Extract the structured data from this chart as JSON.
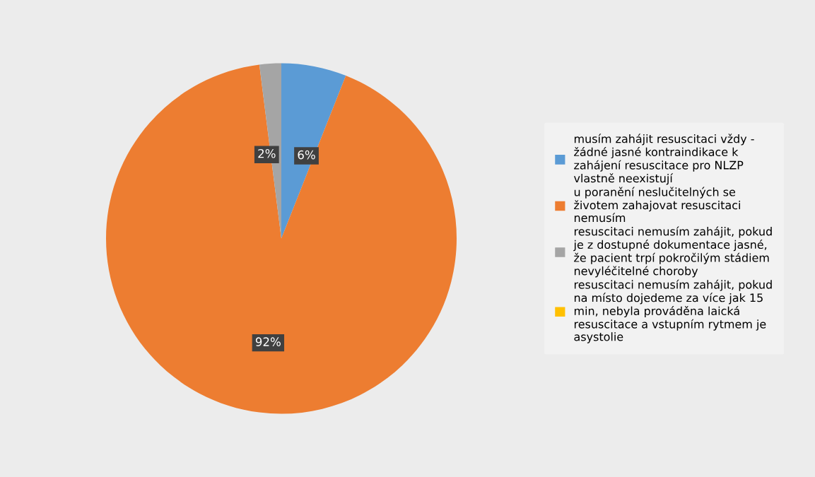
{
  "chart_data": {
    "type": "pie",
    "categories": [
      "musím zahájit resuscitaci vždy - žádné jasné kontraindikace k zahájení resuscitace pro NLZP vlastně neexistují",
      "u poranění neslučitelných se životem zahajovat resuscitaci nemusím",
      "resuscitaci nemusím zahájit, pokud je z dostupné dokumentace jasné, že pacient trpí pokročilým stádiem nevyléčitelné choroby",
      "resuscitaci nemusím zahájit, pokud na místo dojedeme za více jak 15 min, nebyla prováděna laická resuscitace a vstupním rytmem je asystolie"
    ],
    "values": [
      6,
      92,
      2,
      0
    ],
    "colors": [
      "#5b9bd5",
      "#ed7d31",
      "#a5a5a5",
      "#ffc000"
    ],
    "value_labels": [
      "6%",
      "92%",
      "2%",
      null
    ],
    "legend": "right"
  }
}
